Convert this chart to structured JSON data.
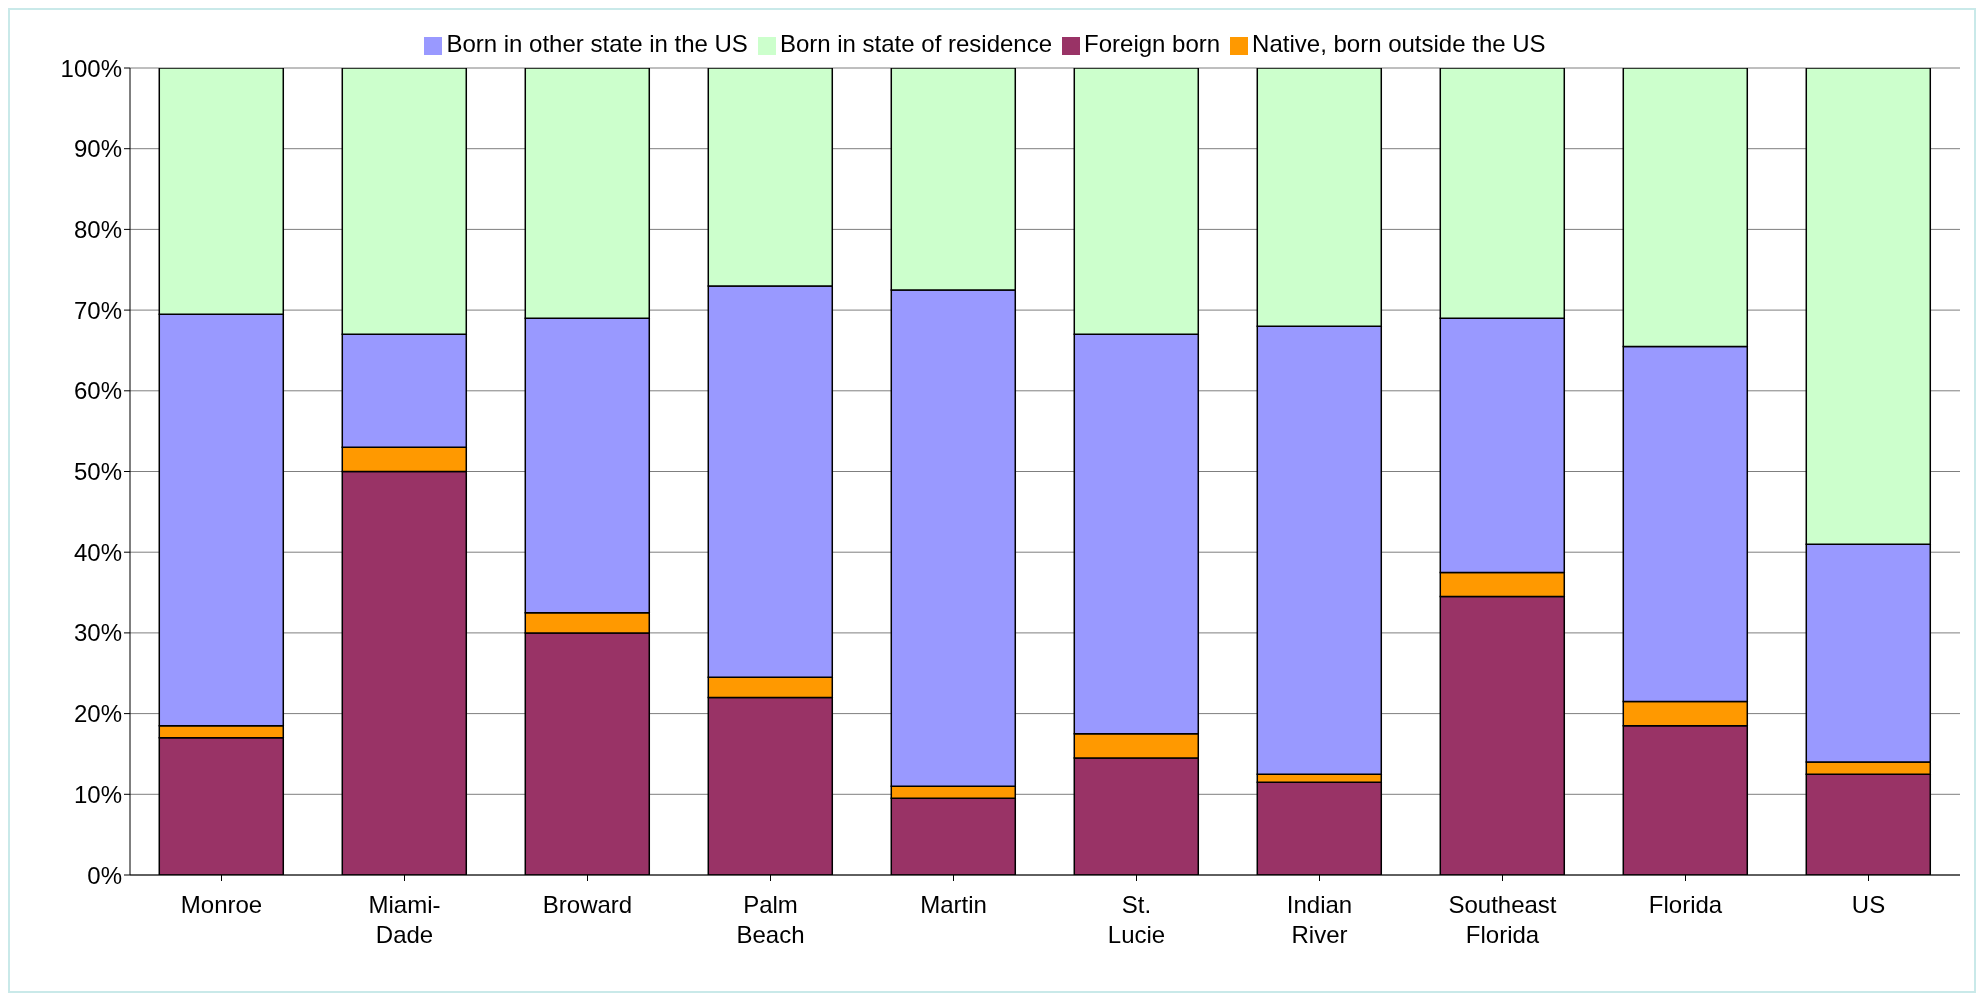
{
  "chart_data": {
    "type": "bar",
    "stacked": true,
    "categories": [
      "Monroe",
      "Miami-Dade",
      "Broward",
      "Palm Beach",
      "Martin",
      "St. Lucie",
      "Indian River",
      "Southeast Florida",
      "Florida",
      "US"
    ],
    "series": [
      {
        "name": "Foreign born",
        "color": "#993366",
        "values": [
          17,
          50,
          30,
          22,
          9.5,
          14.5,
          11.5,
          34.5,
          18.5,
          12.5
        ]
      },
      {
        "name": "Native, born outside the US",
        "color": "#ff9900",
        "values": [
          1.5,
          3,
          2.5,
          2.5,
          1.5,
          3,
          1,
          3,
          3,
          1.5
        ]
      },
      {
        "name": "Born in other state in the US",
        "color": "#9999ff",
        "values": [
          51,
          14,
          36.5,
          48.5,
          61.5,
          49.5,
          55.5,
          31.5,
          44,
          27
        ]
      },
      {
        "name": "Born in state of residence",
        "color": "#ccffcc",
        "values": [
          30.5,
          33,
          31,
          27,
          27.5,
          33,
          32,
          31,
          34.5,
          59
        ]
      }
    ],
    "ylim": [
      0,
      100
    ],
    "yticks": [
      {
        "value": 0,
        "label": "0%"
      },
      {
        "value": 10,
        "label": "10%"
      },
      {
        "value": 20,
        "label": "20%"
      },
      {
        "value": 30,
        "label": "30%"
      },
      {
        "value": 40,
        "label": "40%"
      },
      {
        "value": 50,
        "label": "50%"
      },
      {
        "value": 60,
        "label": "60%"
      },
      {
        "value": 70,
        "label": "70%"
      },
      {
        "value": 80,
        "label": "80%"
      },
      {
        "value": 90,
        "label": "90%"
      },
      {
        "value": 100,
        "label": "100%"
      }
    ],
    "grid": "y",
    "legend": "top"
  }
}
